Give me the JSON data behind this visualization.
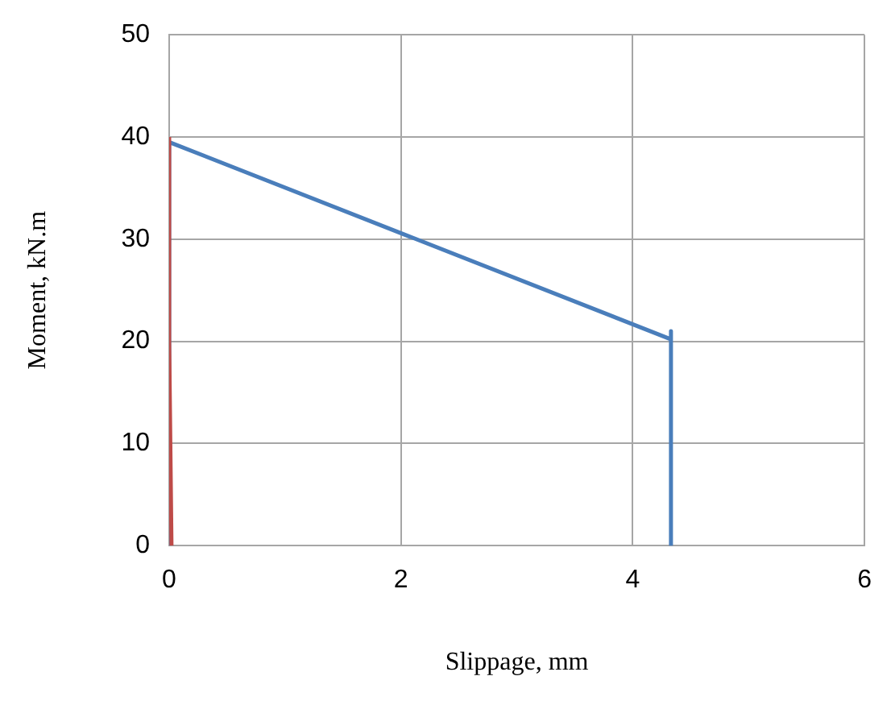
{
  "chart_data": {
    "type": "line",
    "xlabel": "Slippage, mm",
    "ylabel": "Moment, kN.m",
    "xlim": [
      0,
      6
    ],
    "xticks": [
      0,
      2,
      4,
      6
    ],
    "ylim": [
      0,
      50
    ],
    "yticks": [
      0,
      10,
      20,
      30,
      40,
      50
    ],
    "grid": true,
    "marker": "none",
    "series": [
      {
        "color": "#be4b48",
        "x": [
          0.02,
          0,
          0
        ],
        "values": [
          0,
          20,
          40
        ]
      },
      {
        "color": "#4a7ebb",
        "x": [
          0,
          0,
          4.33,
          4.33,
          4.33
        ],
        "values": [
          0,
          39.5,
          20.2,
          21,
          0
        ]
      }
    ]
  }
}
